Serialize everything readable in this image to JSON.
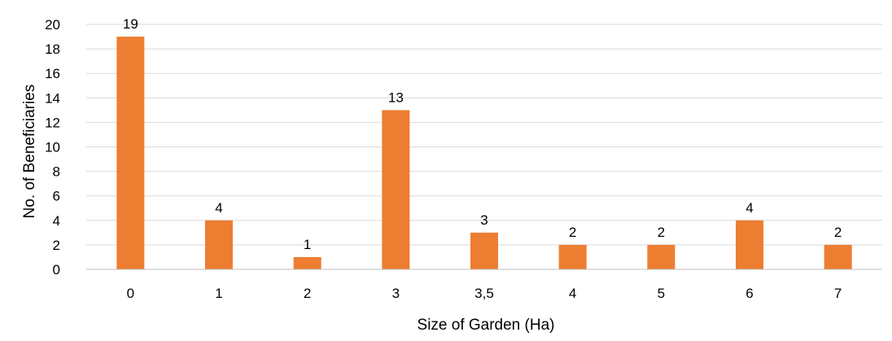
{
  "chart_data": {
    "type": "bar",
    "categories": [
      "0",
      "1",
      "2",
      "3",
      "3,5",
      "4",
      "5",
      "6",
      "7"
    ],
    "values": [
      19,
      4,
      1,
      13,
      3,
      2,
      2,
      4,
      2
    ],
    "data_labels": [
      "19",
      "4",
      "1",
      "13",
      "3",
      "2",
      "2",
      "4",
      "2"
    ],
    "title": "",
    "xlabel": "Size of Garden (Ha)",
    "ylabel": "No. of Beneficiaries",
    "ylim": [
      0,
      20
    ],
    "yticks": [
      0,
      2,
      4,
      6,
      8,
      10,
      12,
      14,
      16,
      18,
      20
    ],
    "ytick_labels": [
      "0",
      "2",
      "4",
      "6",
      "8",
      "10",
      "12",
      "14",
      "16",
      "18",
      "20"
    ],
    "grid": true,
    "legend": "none",
    "bar_color": "#ED7D31",
    "grid_color": "#D9D9D9",
    "axis_color": "#BFBFBF"
  }
}
